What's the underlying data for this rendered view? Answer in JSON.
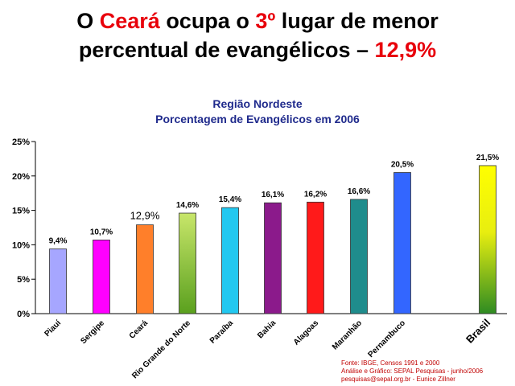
{
  "headline": {
    "line1_pre": "O ",
    "line1_state": "Ceará",
    "line1_mid": " ocupa o ",
    "line1_rank": "3º",
    "line1_post": " lugar de menor",
    "line2_pre": "percentual de evangélicos – ",
    "line2_value": "12,9%"
  },
  "chart_data": {
    "type": "bar",
    "title": "Região Nordeste",
    "subtitle": "Porcentagem de Evangélicos em 2006",
    "categories": [
      "Piauí",
      "Sergipe",
      "Ceará",
      "Rio Grande do Norte",
      "Paraíba",
      "Bahia",
      "Alagoas",
      "Maranhão",
      "Pernambuco",
      "Brasil"
    ],
    "values": [
      9.4,
      10.7,
      12.9,
      14.6,
      15.4,
      16.1,
      16.2,
      16.6,
      20.5,
      21.5
    ],
    "value_labels": [
      "9,4%",
      "10,7%",
      "12,9%",
      "14,6%",
      "15,4%",
      "16,1%",
      "16,2%",
      "16,6%",
      "20,5%",
      "21,5%"
    ],
    "colors": [
      "#a6a6ff",
      "#ff00ff",
      "#ff7f2a",
      "gradient-green",
      "#22c8f0",
      "#8b1a8b",
      "#ff1a1a",
      "#1f8c8c",
      "#3366ff",
      "gradient-yellow"
    ],
    "ylim": [
      0,
      25
    ],
    "yticks": [
      0,
      5,
      10,
      15,
      20,
      25
    ],
    "ytick_labels": [
      "0%",
      "5%",
      "10%",
      "15%",
      "20%",
      "25%"
    ],
    "xlabel": "",
    "ylabel": "",
    "grid": false,
    "legend": "none"
  },
  "source": {
    "line1": "Fonte: IBGE, Censos 1991 e 2000",
    "line2": "Análise e Gráfico: SEPAL Pesquisas - junho/2006",
    "line3": "pesquisas@sepal.org.br - Eunice Zillner"
  }
}
